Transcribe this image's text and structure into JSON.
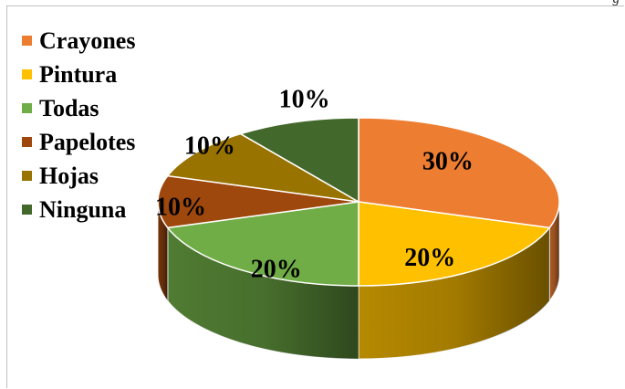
{
  "caption": "g",
  "chart_data": {
    "type": "pie",
    "style": "3d",
    "legend_position": "left",
    "slices": [
      {
        "label": "Crayones",
        "value": 30,
        "display": "30%",
        "color": "#ED7D31"
      },
      {
        "label": "Pintura",
        "value": 20,
        "display": "20%",
        "color": "#FFC000"
      },
      {
        "label": "Todas",
        "value": 20,
        "display": "20%",
        "color": "#70AD47"
      },
      {
        "label": "Papelotes",
        "value": 10,
        "display": "10%",
        "color": "#9E480E"
      },
      {
        "label": "Hojas",
        "value": 10,
        "display": "10%",
        "color": "#997300"
      },
      {
        "label": "Ninguna",
        "value": 10,
        "display": "10%",
        "color": "#43682B"
      }
    ]
  }
}
